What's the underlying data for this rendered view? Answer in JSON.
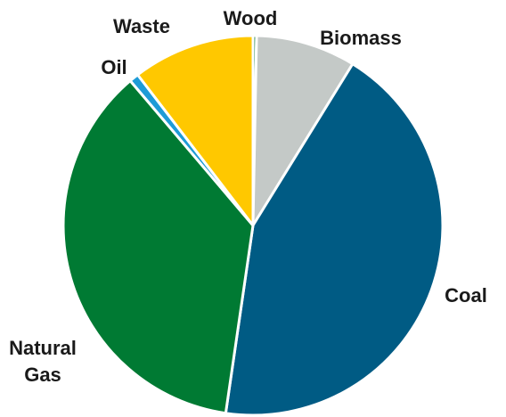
{
  "chart_data": {
    "type": "pie",
    "title": "",
    "start_angle_deg": 0,
    "direction": "clockwise",
    "slices": [
      {
        "label": "Wood",
        "value": 0.3,
        "color": "#2E8B57",
        "label_lines": [
          "Wood"
        ]
      },
      {
        "label": "Biomass",
        "value": 8.5,
        "color": "#C4C9C7",
        "label_lines": [
          "Biomass"
        ]
      },
      {
        "label": "Coal",
        "value": 43.5,
        "color": "#005B84",
        "label_lines": [
          "Coal"
        ]
      },
      {
        "label": "Natural Gas",
        "value": 36.5,
        "color": "#007A33",
        "label_lines": [
          "Natural",
          "Gas"
        ]
      },
      {
        "label": "Oil",
        "value": 0.8,
        "color": "#1E9BD7",
        "label_lines": [
          "Oil"
        ]
      },
      {
        "label": "Waste",
        "value": 10.4,
        "color": "#FFC800",
        "label_lines": [
          "Waste"
        ]
      }
    ]
  }
}
